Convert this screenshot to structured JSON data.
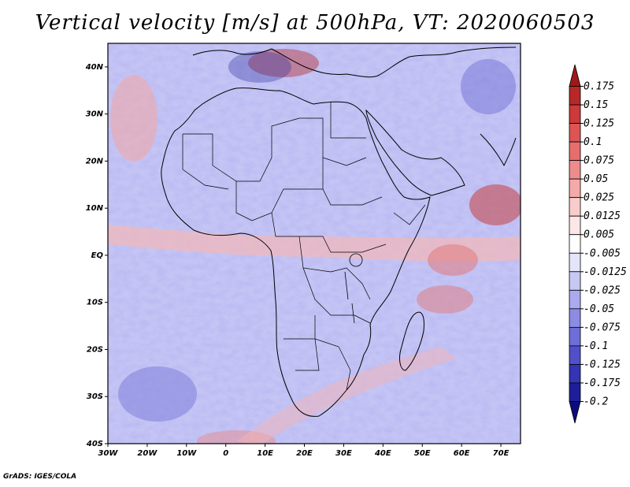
{
  "title": "Vertical velocity [m/s] at 500hPa, VT: 2020060503",
  "credit": "GrADS: IGES/COLA",
  "map": {
    "lon_range": [
      -30,
      75
    ],
    "lat_range": [
      -40,
      45
    ],
    "lat_ticks": [
      {
        "value": 40,
        "label": "40N"
      },
      {
        "value": 30,
        "label": "30N"
      },
      {
        "value": 20,
        "label": "20N"
      },
      {
        "value": 10,
        "label": "10N"
      },
      {
        "value": 0,
        "label": "EQ"
      },
      {
        "value": -10,
        "label": "10S"
      },
      {
        "value": -20,
        "label": "20S"
      },
      {
        "value": -30,
        "label": "30S"
      },
      {
        "value": -40,
        "label": "40S"
      }
    ],
    "lon_ticks": [
      {
        "value": -30,
        "label": "30W"
      },
      {
        "value": -20,
        "label": "20W"
      },
      {
        "value": -10,
        "label": "10W"
      },
      {
        "value": 0,
        "label": "0"
      },
      {
        "value": 10,
        "label": "10E"
      },
      {
        "value": 20,
        "label": "20E"
      },
      {
        "value": 30,
        "label": "30E"
      },
      {
        "value": 40,
        "label": "40E"
      },
      {
        "value": 50,
        "label": "50E"
      },
      {
        "value": 60,
        "label": "60E"
      },
      {
        "value": 70,
        "label": "70E"
      }
    ]
  },
  "colorbar": {
    "labels": [
      "0.175",
      "0.15",
      "0.125",
      "0.1",
      "0.075",
      "0.05",
      "0.025",
      "0.0125",
      "0.005",
      "-0.005",
      "-0.0125",
      "-0.025",
      "-0.05",
      "-0.075",
      "-0.1",
      "-0.125",
      "-0.175",
      "-0.2"
    ],
    "colors": [
      "#a01818",
      "#b82828",
      "#cc3a3a",
      "#dc5454",
      "#e66e6e",
      "#ee8c8c",
      "#f4aaaa",
      "#f9cccc",
      "#fce6e6",
      "#ffffff",
      "#e4e4fb",
      "#c8c8f4",
      "#aaaaee",
      "#8c8ce4",
      "#6e6ed8",
      "#5050c8",
      "#3434b4",
      "#1e1e9a",
      "#0c0c7c"
    ]
  }
}
